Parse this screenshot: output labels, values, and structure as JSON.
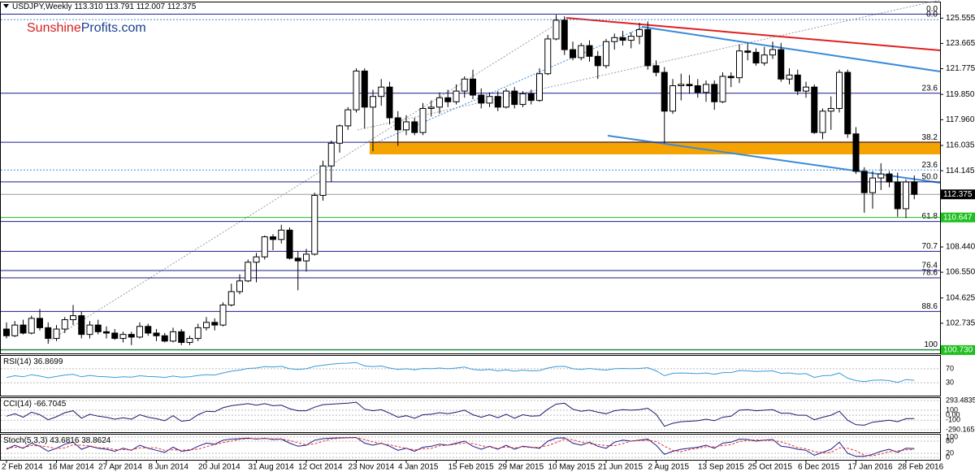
{
  "chart_data": [
    {
      "type": "candlestick",
      "title": "USDJPY,Weekly",
      "value_labels": [
        "113.310",
        "113.791",
        "112.007",
        "112.375"
      ],
      "watermark": [
        "Sunshine",
        "Profits.com"
      ],
      "categories": [
        "2 Feb 2014",
        null,
        null,
        null,
        null,
        null,
        "16 Mar 2014",
        null,
        null,
        null,
        null,
        null,
        "27 Apr 2014",
        null,
        null,
        null,
        null,
        null,
        "8 Jun 2014",
        null,
        null,
        null,
        null,
        null,
        "20 Jul 2014",
        null,
        null,
        null,
        null,
        null,
        "31 Aug 2014",
        null,
        null,
        null,
        null,
        null,
        "12 Oct 2014",
        null,
        null,
        null,
        null,
        null,
        "23 Nov 2014",
        null,
        null,
        null,
        null,
        null,
        "4 Jan 2015",
        null,
        null,
        null,
        null,
        null,
        "15 Feb 2015",
        null,
        null,
        null,
        null,
        null,
        "29 Mar 2015",
        null,
        null,
        null,
        null,
        null,
        "10 May 2015",
        null,
        null,
        null,
        null,
        null,
        "21 Jun 2015",
        null,
        null,
        null,
        null,
        null,
        "2 Aug 2015",
        null,
        null,
        null,
        null,
        null,
        "13 Sep 2015",
        null,
        null,
        null,
        null,
        null,
        "25 Oct 2015",
        null,
        null,
        null,
        null,
        null,
        "6 Dec 2015",
        null,
        null,
        null,
        null,
        null,
        "17 Jan 2016",
        null,
        null,
        null,
        null,
        null,
        "28 Feb 2016",
        null
      ],
      "open": [
        102.3,
        101.8,
        102.6,
        102.0,
        103.1,
        102.4,
        101.6,
        102.3,
        103.0,
        103.3,
        101.9,
        102.6,
        102.1,
        102.0,
        101.6,
        101.9,
        101.7,
        102.5,
        102.0,
        101.8,
        101.4,
        102.1,
        101.3,
        101.6,
        102.4,
        102.8,
        102.6,
        104.1,
        105.1,
        105.9,
        107.3,
        107.7,
        109.2,
        109.0,
        109.7,
        107.6,
        107.4,
        107.9,
        112.3,
        114.5,
        116.2,
        117.5,
        118.7,
        121.6,
        118.9,
        119.7,
        120.4,
        118.1,
        117.2,
        117.8,
        117.0,
        118.8,
        118.9,
        119.6,
        119.3,
        120.1,
        121.0,
        119.8,
        119.2,
        119.7,
        118.9,
        120.1,
        119.1,
        119.9,
        119.4,
        121.4,
        124.0,
        125.4,
        123.2,
        122.6,
        123.5,
        122.7,
        122.0,
        123.8,
        124.1,
        123.9,
        124.2,
        124.7,
        122.0,
        121.5,
        118.6,
        120.5,
        120.6,
        120.5,
        120.0,
        120.6,
        119.3,
        121.2,
        121.1,
        123.1,
        123.0,
        122.2,
        122.8,
        123.2,
        121.0,
        121.3,
        120.1,
        120.4,
        117.0,
        118.6,
        118.8,
        121.5,
        116.9,
        114.1,
        112.5,
        113.6,
        113.9,
        113.3,
        111.3,
        113.31
      ],
      "high": [
        102.8,
        102.9,
        103.0,
        103.3,
        103.8,
        102.8,
        102.6,
        103.2,
        104.1,
        103.6,
        102.9,
        103.0,
        102.5,
        102.3,
        102.1,
        102.1,
        102.8,
        102.7,
        102.3,
        102.0,
        102.4,
        102.3,
        101.8,
        102.7,
        103.2,
        103.1,
        104.3,
        105.7,
        106.4,
        107.5,
        108.0,
        109.3,
        109.4,
        110.1,
        109.9,
        108.1,
        108.3,
        112.5,
        114.9,
        116.4,
        117.6,
        118.9,
        121.8,
        121.8,
        120.2,
        121.0,
        120.8,
        118.6,
        118.3,
        118.1,
        119.2,
        119.4,
        120.0,
        120.2,
        120.6,
        121.2,
        121.7,
        120.3,
        120.0,
        120.1,
        120.3,
        120.4,
        120.1,
        120.2,
        121.8,
        124.3,
        125.8,
        125.7,
        123.8,
        123.7,
        123.9,
        123.1,
        124.0,
        124.4,
        124.6,
        124.5,
        125.2,
        125.3,
        122.4,
        121.9,
        121.0,
        121.4,
        121.3,
        121.0,
        120.9,
        120.9,
        121.5,
        121.5,
        123.6,
        123.7,
        123.3,
        123.4,
        123.8,
        123.7,
        121.8,
        121.7,
        120.8,
        120.6,
        118.8,
        119.7,
        121.7,
        121.7,
        117.4,
        114.4,
        114.1,
        114.7,
        114.1,
        114.0,
        113.5,
        113.791
      ],
      "low": [
        101.6,
        101.7,
        101.9,
        101.9,
        102.2,
        101.2,
        101.4,
        102.0,
        102.6,
        101.6,
        101.6,
        101.9,
        101.6,
        101.5,
        101.3,
        101.1,
        101.6,
        101.8,
        101.4,
        101.3,
        101.3,
        101.1,
        101.1,
        101.4,
        102.2,
        102.2,
        102.5,
        104.0,
        104.9,
        105.8,
        105.8,
        107.5,
        108.2,
        108.7,
        107.5,
        105.2,
        106.6,
        107.8,
        111.9,
        113.3,
        115.5,
        117.2,
        118.5,
        117.3,
        115.6,
        119.0,
        117.6,
        116.0,
        116.8,
        116.8,
        116.8,
        118.2,
        118.4,
        118.9,
        119.1,
        119.6,
        119.5,
        118.8,
        118.9,
        118.6,
        118.8,
        118.8,
        118.9,
        119.1,
        119.3,
        121.3,
        123.9,
        122.8,
        122.4,
        122.4,
        122.3,
        121.0,
        121.8,
        123.2,
        123.5,
        123.3,
        123.6,
        121.7,
        121.2,
        116.2,
        118.4,
        119.4,
        119.9,
        119.6,
        119.3,
        118.7,
        119.2,
        120.4,
        120.7,
        122.4,
        122.0,
        122.0,
        122.5,
        120.8,
        120.6,
        119.8,
        119.6,
        116.9,
        116.5,
        117.2,
        118.5,
        116.6,
        113.9,
        111.0,
        111.3,
        112.7,
        112.9,
        110.7,
        110.6,
        112.007
      ],
      "close": [
        101.8,
        102.6,
        102.0,
        103.1,
        102.4,
        101.6,
        102.3,
        103.0,
        103.3,
        101.9,
        102.6,
        102.1,
        102.0,
        101.6,
        101.9,
        101.7,
        102.5,
        102.0,
        101.8,
        101.4,
        102.1,
        101.3,
        101.6,
        102.4,
        102.8,
        102.6,
        104.1,
        105.1,
        105.9,
        107.3,
        107.7,
        109.2,
        109.0,
        109.7,
        107.6,
        107.4,
        107.9,
        112.3,
        114.5,
        116.2,
        117.5,
        118.7,
        121.6,
        118.9,
        119.7,
        120.4,
        118.1,
        117.2,
        117.8,
        117.0,
        118.8,
        118.9,
        119.6,
        119.3,
        120.1,
        121.0,
        119.8,
        119.2,
        119.7,
        118.9,
        120.1,
        119.1,
        119.9,
        119.4,
        121.4,
        124.0,
        125.4,
        123.2,
        122.6,
        123.5,
        122.7,
        122.0,
        123.8,
        124.1,
        123.9,
        124.2,
        124.7,
        122.0,
        121.5,
        118.6,
        120.5,
        120.6,
        120.5,
        120.0,
        120.6,
        119.3,
        121.2,
        121.1,
        123.1,
        123.0,
        122.2,
        122.8,
        123.2,
        121.0,
        121.3,
        120.1,
        120.4,
        117.0,
        118.6,
        118.8,
        121.5,
        116.9,
        114.1,
        112.5,
        113.6,
        113.9,
        113.3,
        111.3,
        113.3,
        112.375
      ],
      "up_color": "#ffffff",
      "down_color": "#000000",
      "ylim": [
        100.48,
        126.73
      ],
      "yticks": [
        125.555,
        123.665,
        121.775,
        {
          "value": 119.85,
          "label": "119.850"
        },
        {
          "value": 117.96,
          "label": "117.960"
        },
        116.035,
        114.145,
        {
          "value": 108.44,
          "label": "108.440"
        },
        {
          "value": 106.55,
          "label": "106.550"
        },
        104.625,
        102.735
      ],
      "marker_ticks": [
        {
          "value": 112.375,
          "color": "#000000"
        },
        {
          "value": 110.647,
          "color": "#1fbf1f"
        },
        {
          "value": 100.73,
          "label": "100.730",
          "color": "#1fbf1f"
        }
      ],
      "levels": [
        {
          "label": "0.0",
          "value": 125.86
        },
        {
          "label": "0.0",
          "value": 125.45,
          "dotted": true
        },
        {
          "label": "23.6",
          "value": 119.94
        },
        {
          "label": "38.2",
          "value": 116.27
        },
        {
          "label": "23.6",
          "value": 114.2,
          "dotted": true
        },
        {
          "label": "50.0",
          "value": 113.31
        },
        {
          "label": "61.8",
          "value": 110.35
        },
        {
          "label": "70.7",
          "value": 108.11
        },
        {
          "label": "76.4",
          "value": 106.68
        },
        {
          "label": "78.6",
          "value": 106.13
        },
        {
          "label": "88.6",
          "value": 103.62
        },
        {
          "label": "100",
          "value": 100.76
        }
      ]
    },
    {
      "type": "line",
      "title": "RSI(14)",
      "ylim": [
        0,
        100
      ],
      "yticks": [
        30,
        70
      ],
      "series": [
        {
          "color": "#3a9ad9",
          "values": [
            45,
            50,
            47,
            53,
            49,
            44,
            48,
            52,
            54,
            47,
            51,
            48,
            47,
            45,
            47,
            46,
            50,
            48,
            47,
            45,
            49,
            46,
            47,
            51,
            53,
            52,
            58,
            63,
            66,
            71,
            72,
            76,
            75,
            77,
            70,
            68,
            70,
            77,
            80,
            83,
            85,
            86,
            88,
            78,
            76,
            78,
            72,
            68,
            70,
            67,
            71,
            70,
            72,
            70,
            72,
            75,
            68,
            66,
            68,
            64,
            67,
            63,
            66,
            64,
            65,
            72,
            76,
            77,
            70,
            68,
            71,
            68,
            66,
            70,
            71,
            70,
            71,
            73,
            64,
            50,
            57,
            58,
            57,
            56,
            58,
            54,
            59,
            59,
            65,
            64,
            62,
            63,
            64,
            57,
            58,
            55,
            56,
            45,
            50,
            51,
            58,
            43,
            36,
            33,
            37,
            38,
            36,
            31,
            39,
            36.8699
          ]
        }
      ]
    },
    {
      "type": "line",
      "title": "CCI(14)",
      "ylim": [
        -290.1653,
        293.4835
      ],
      "yticks": [
        293.4835,
        100,
        {
          "value": 0,
          "label": "0.00"
        },
        -100,
        -290.1653
      ],
      "series": [
        {
          "color": "#1a1a6e",
          "values": [
            -20,
            30,
            -40,
            60,
            10,
            -90,
            -30,
            50,
            90,
            -60,
            20,
            -20,
            -40,
            -80,
            -50,
            -80,
            10,
            -40,
            -70,
            -110,
            -10,
            -120,
            -100,
            10,
            80,
            70,
            150,
            190,
            210,
            230,
            200,
            230,
            190,
            200,
            130,
            90,
            90,
            160,
            210,
            220,
            230,
            240,
            260,
            120,
            90,
            110,
            40,
            -40,
            -10,
            -60,
            10,
            20,
            50,
            30,
            60,
            100,
            10,
            -40,
            10,
            -50,
            20,
            -60,
            10,
            -20,
            -10,
            120,
            220,
            240,
            120,
            80,
            100,
            60,
            30,
            90,
            110,
            100,
            110,
            140,
            20,
            -220,
            -160,
            -130,
            -120,
            -110,
            -80,
            -110,
            -40,
            -20,
            100,
            110,
            90,
            100,
            110,
            40,
            40,
            0,
            0,
            -90,
            -40,
            0,
            80,
            -100,
            -190,
            -200,
            -140,
            -120,
            -100,
            -130,
            -70,
            -66.7045
          ]
        }
      ]
    },
    {
      "type": "line",
      "title": "Stoch(5,3,3)",
      "ylim": [
        0,
        100
      ],
      "yticks": [
        100,
        80,
        20,
        0
      ],
      "series": [
        {
          "color": "#1a1a8e",
          "values": [
            40,
            60,
            45,
            70,
            55,
            30,
            45,
            65,
            75,
            40,
            55,
            45,
            40,
            30,
            45,
            35,
            60,
            45,
            35,
            25,
            50,
            30,
            35,
            55,
            70,
            65,
            85,
            90,
            92,
            95,
            90,
            94,
            88,
            90,
            70,
            55,
            60,
            85,
            92,
            95,
            96,
            97,
            98,
            70,
            60,
            70,
            55,
            35,
            45,
            30,
            50,
            55,
            65,
            60,
            70,
            80,
            55,
            40,
            55,
            40,
            60,
            40,
            55,
            50,
            45,
            80,
            95,
            96,
            70,
            60,
            75,
            55,
            45,
            75,
            85,
            80,
            85,
            90,
            60,
            15,
            30,
            40,
            45,
            50,
            60,
            45,
            70,
            75,
            90,
            88,
            80,
            85,
            88,
            55,
            50,
            40,
            35,
            10,
            25,
            40,
            75,
            20,
            5,
            5,
            15,
            30,
            40,
            25,
            45,
            43.6816
          ]
        },
        {
          "color": "#e03030",
          "dashed": true,
          "values": [
            45,
            50,
            48,
            58,
            57,
            52,
            43,
            47,
            62,
            60,
            57,
            47,
            47,
            38,
            38,
            37,
            47,
            47,
            47,
            35,
            37,
            35,
            38,
            40,
            53,
            63,
            73,
            80,
            89,
            92,
            92,
            93,
            91,
            91,
            83,
            72,
            62,
            67,
            79,
            91,
            94,
            96,
            97,
            88,
            76,
            67,
            62,
            53,
            45,
            37,
            42,
            45,
            57,
            60,
            65,
            70,
            68,
            58,
            50,
            45,
            52,
            47,
            52,
            48,
            50,
            58,
            73,
            90,
            87,
            75,
            68,
            63,
            58,
            58,
            68,
            80,
            83,
            85,
            78,
            55,
            35,
            28,
            38,
            45,
            52,
            52,
            58,
            63,
            78,
            84,
            86,
            84,
            84,
            76,
            64,
            48,
            42,
            28,
            23,
            25,
            47,
            45,
            33,
            10,
            8,
            17,
            28,
            32,
            37,
            38.8624
          ]
        }
      ]
    }
  ]
}
